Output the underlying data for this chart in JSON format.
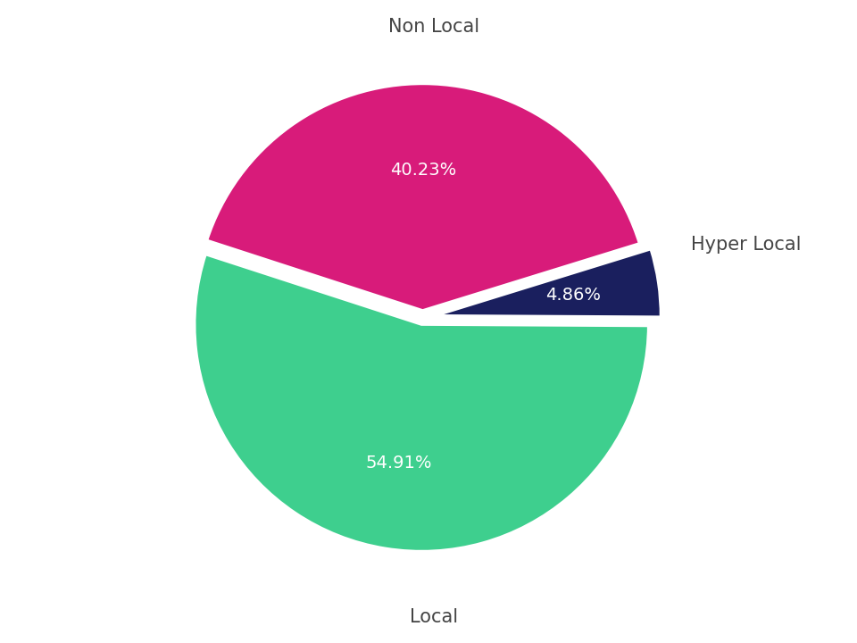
{
  "labels": [
    "Non Local",
    "Hyper Local",
    "Local"
  ],
  "values": [
    40.23,
    4.86,
    54.91
  ],
  "colors": [
    "#d81b7a",
    "#1a1f5e",
    "#3ecf8e"
  ],
  "explode": [
    0.03,
    0.05,
    0.03
  ],
  "label_fontsize": 15,
  "pct_fontsize": 14,
  "background_color": "#ffffff",
  "startangle": 162,
  "figsize": [
    9.6,
    7.2
  ],
  "dpi": 100,
  "label_color": "#444444"
}
